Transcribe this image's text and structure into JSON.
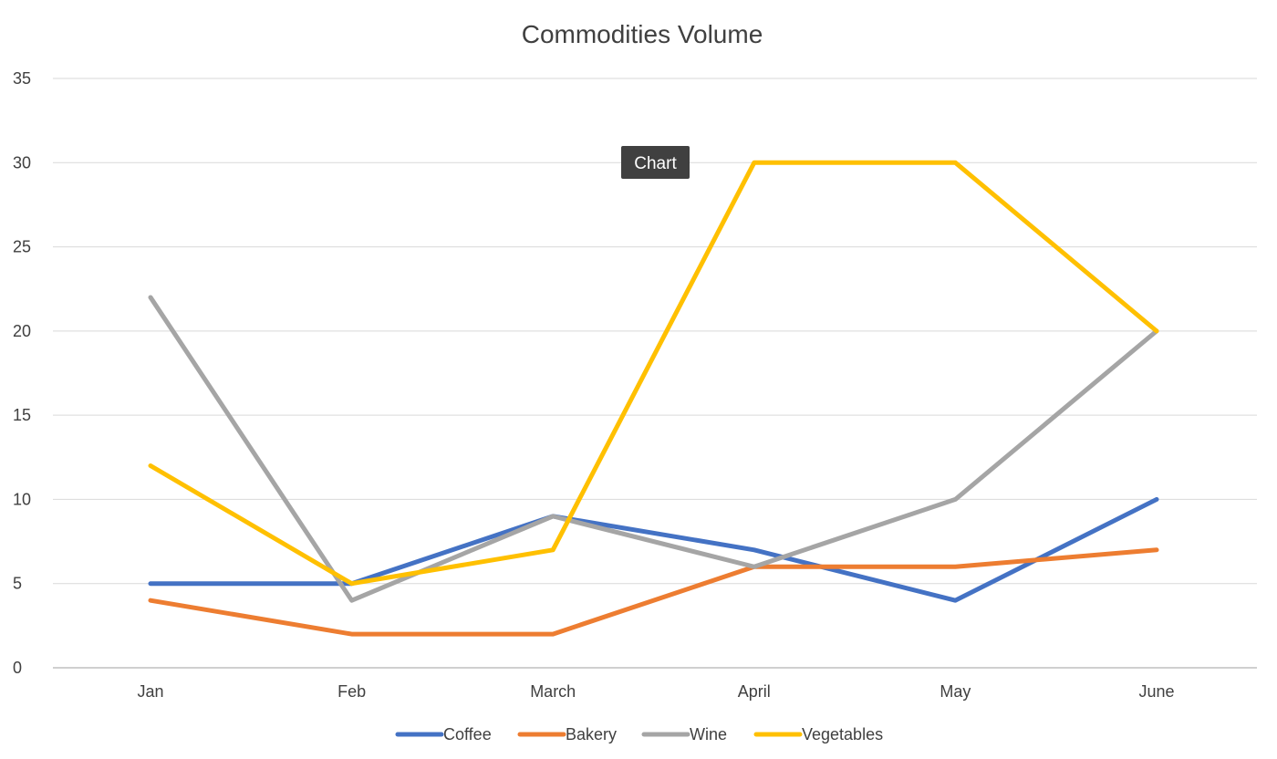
{
  "tooltip": {
    "label": "Chart"
  },
  "chart_data": {
    "type": "line",
    "title": "Commodities Volume",
    "xlabel": "",
    "ylabel": "",
    "categories": [
      "Jan",
      "Feb",
      "March",
      "April",
      "May",
      "June"
    ],
    "ylim": [
      0,
      35
    ],
    "yticks": [
      0,
      5,
      10,
      15,
      20,
      25,
      30,
      35
    ],
    "grid": true,
    "legend_position": "bottom",
    "series": [
      {
        "name": "Coffee",
        "color": "#4472C4",
        "values": [
          5,
          5,
          9,
          7,
          4,
          10
        ]
      },
      {
        "name": "Bakery",
        "color": "#ED7D31",
        "values": [
          4,
          2,
          2,
          6,
          6,
          7
        ]
      },
      {
        "name": "Wine",
        "color": "#A5A5A5",
        "values": [
          22,
          4,
          9,
          6,
          10,
          20
        ]
      },
      {
        "name": "Vegetables",
        "color": "#FFC000",
        "values": [
          12,
          5,
          7,
          30,
          30,
          20
        ]
      }
    ]
  }
}
